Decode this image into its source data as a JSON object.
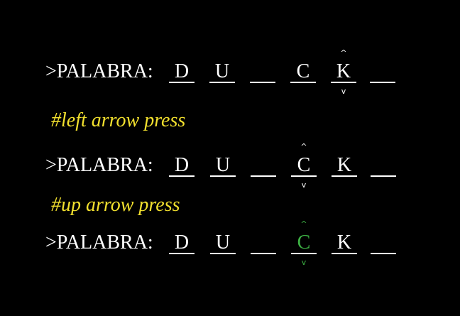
{
  "prompt_label": ">PALABRA:",
  "comments": [
    "#left arrow press",
    "#up arrow press"
  ],
  "colors": {
    "background": "#000000",
    "text": "#ffffff",
    "comment": "#f2e02e",
    "selected": "#3cb043"
  },
  "caret_up_glyph": "^",
  "caret_down_glyph": "v",
  "lines": [
    {
      "slots": [
        "D",
        "U",
        "",
        "C",
        "K",
        ""
      ],
      "cursor_slot": 5,
      "selected": false
    },
    {
      "slots": [
        "D",
        "U",
        "",
        "C",
        "K",
        ""
      ],
      "cursor_slot": 4,
      "selected": false
    },
    {
      "slots": [
        "D",
        "U",
        "",
        "C",
        "K",
        ""
      ],
      "cursor_slot": 4,
      "selected": true
    }
  ]
}
